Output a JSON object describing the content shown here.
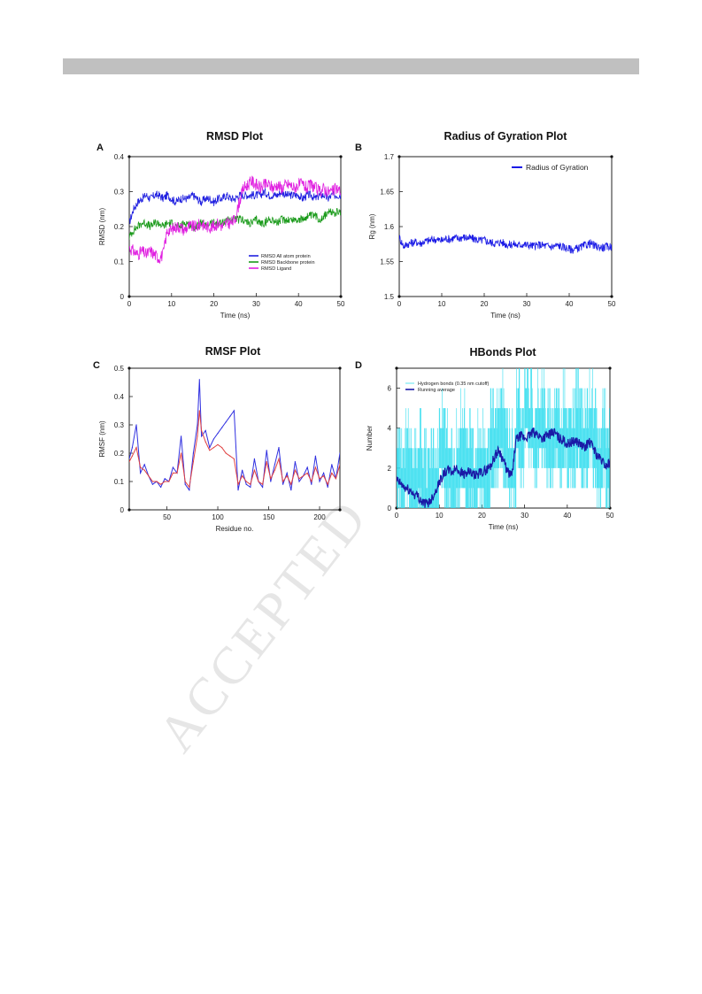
{
  "chart_data": [
    {
      "type": "line",
      "panel_label": "A",
      "title": "RMSD Plot",
      "xlabel": "Time (ns)",
      "ylabel": "RMSD (nm)",
      "xlim": [
        0,
        50
      ],
      "ylim": [
        0,
        0.4
      ],
      "xticks": [
        0,
        10,
        20,
        30,
        40,
        50
      ],
      "yticks": [
        0,
        0.1,
        0.2,
        0.3,
        0.4
      ],
      "grid": false,
      "legend_position": "bottom-right",
      "series": [
        {
          "name": "RMSD All atom protein",
          "color": "#2020e0",
          "x": [
            0,
            1,
            2,
            3,
            4,
            5,
            6,
            7,
            8,
            9,
            10,
            11,
            12,
            13,
            14,
            15,
            16,
            17,
            18,
            19,
            20,
            21,
            22,
            23,
            24,
            25,
            26,
            27,
            28,
            29,
            30,
            31,
            32,
            33,
            34,
            35,
            36,
            37,
            38,
            39,
            40,
            41,
            42,
            43,
            44,
            45,
            46,
            47,
            48,
            49,
            50
          ],
          "y": [
            0.21,
            0.25,
            0.27,
            0.28,
            0.29,
            0.28,
            0.29,
            0.29,
            0.28,
            0.29,
            0.28,
            0.27,
            0.28,
            0.28,
            0.28,
            0.29,
            0.28,
            0.27,
            0.28,
            0.28,
            0.27,
            0.28,
            0.28,
            0.29,
            0.28,
            0.28,
            0.29,
            0.29,
            0.29,
            0.29,
            0.29,
            0.29,
            0.3,
            0.29,
            0.29,
            0.29,
            0.3,
            0.29,
            0.29,
            0.29,
            0.29,
            0.28,
            0.29,
            0.29,
            0.28,
            0.29,
            0.29,
            0.28,
            0.29,
            0.29,
            0.29
          ]
        },
        {
          "name": "RMSD Backbone protein",
          "color": "#1a9a1a",
          "x": [
            0,
            1,
            2,
            3,
            4,
            5,
            6,
            7,
            8,
            9,
            10,
            11,
            12,
            13,
            14,
            15,
            16,
            17,
            18,
            19,
            20,
            21,
            22,
            23,
            24,
            25,
            26,
            27,
            28,
            29,
            30,
            31,
            32,
            33,
            34,
            35,
            36,
            37,
            38,
            39,
            40,
            41,
            42,
            43,
            44,
            45,
            46,
            47,
            48,
            49,
            50
          ],
          "y": [
            0.17,
            0.19,
            0.2,
            0.21,
            0.21,
            0.2,
            0.21,
            0.21,
            0.2,
            0.21,
            0.21,
            0.2,
            0.2,
            0.21,
            0.21,
            0.2,
            0.2,
            0.21,
            0.2,
            0.21,
            0.21,
            0.21,
            0.21,
            0.22,
            0.22,
            0.22,
            0.22,
            0.22,
            0.21,
            0.21,
            0.22,
            0.21,
            0.21,
            0.22,
            0.22,
            0.21,
            0.22,
            0.22,
            0.22,
            0.22,
            0.22,
            0.22,
            0.23,
            0.23,
            0.23,
            0.22,
            0.23,
            0.24,
            0.24,
            0.24,
            0.24
          ]
        },
        {
          "name": "RMSD Ligand",
          "color": "#e020e0",
          "x": [
            0,
            1,
            2,
            3,
            4,
            5,
            6,
            7,
            8,
            9,
            10,
            11,
            12,
            13,
            14,
            15,
            16,
            17,
            18,
            19,
            20,
            21,
            22,
            23,
            24,
            25,
            26,
            27,
            28,
            29,
            30,
            31,
            32,
            33,
            34,
            35,
            36,
            37,
            38,
            39,
            40,
            41,
            42,
            43,
            44,
            45,
            46,
            47,
            48,
            49,
            50
          ],
          "y": [
            0.14,
            0.13,
            0.12,
            0.13,
            0.12,
            0.13,
            0.12,
            0.11,
            0.12,
            0.19,
            0.19,
            0.2,
            0.2,
            0.19,
            0.2,
            0.2,
            0.2,
            0.21,
            0.2,
            0.2,
            0.2,
            0.21,
            0.2,
            0.21,
            0.21,
            0.22,
            0.27,
            0.31,
            0.32,
            0.33,
            0.32,
            0.31,
            0.32,
            0.32,
            0.31,
            0.32,
            0.31,
            0.32,
            0.32,
            0.31,
            0.32,
            0.32,
            0.31,
            0.32,
            0.31,
            0.3,
            0.31,
            0.3,
            0.3,
            0.31,
            0.3
          ]
        }
      ]
    },
    {
      "type": "line",
      "panel_label": "B",
      "title": "Radius of Gyration Plot",
      "xlabel": "Time (ns)",
      "ylabel": "Rg (nm)",
      "xlim": [
        0,
        50
      ],
      "ylim": [
        1.5,
        1.7
      ],
      "xticks": [
        0,
        10,
        20,
        30,
        40,
        50
      ],
      "yticks": [
        1.5,
        1.55,
        1.6,
        1.65,
        1.7
      ],
      "grid": false,
      "legend_position": "top-right",
      "series": [
        {
          "name": "Radius of Gyration",
          "color": "#1a1ae6",
          "x": [
            0,
            1,
            2,
            3,
            4,
            5,
            6,
            7,
            8,
            9,
            10,
            11,
            12,
            13,
            14,
            15,
            16,
            17,
            18,
            19,
            20,
            21,
            22,
            23,
            24,
            25,
            26,
            27,
            28,
            29,
            30,
            31,
            32,
            33,
            34,
            35,
            36,
            37,
            38,
            39,
            40,
            41,
            42,
            43,
            44,
            45,
            46,
            47,
            48,
            49,
            50
          ],
          "y": [
            1.585,
            1.572,
            1.575,
            1.577,
            1.578,
            1.576,
            1.579,
            1.58,
            1.582,
            1.581,
            1.58,
            1.583,
            1.582,
            1.584,
            1.583,
            1.585,
            1.584,
            1.583,
            1.582,
            1.58,
            1.581,
            1.578,
            1.577,
            1.576,
            1.578,
            1.575,
            1.574,
            1.575,
            1.573,
            1.575,
            1.574,
            1.573,
            1.572,
            1.574,
            1.573,
            1.572,
            1.571,
            1.573,
            1.572,
            1.57,
            1.568,
            1.567,
            1.569,
            1.571,
            1.574,
            1.576,
            1.572,
            1.571,
            1.57,
            1.571,
            1.572
          ]
        }
      ]
    },
    {
      "type": "line",
      "panel_label": "C",
      "title": "RMSF Plot",
      "xlabel": "Residue no.",
      "ylabel": "RMSF (nm)",
      "xlim": [
        13,
        220
      ],
      "ylim": [
        0,
        0.5
      ],
      "xticks": [
        50,
        100,
        150,
        200
      ],
      "yticks": [
        0,
        0.1,
        0.2,
        0.3,
        0.4,
        0.5
      ],
      "grid": false,
      "series": [
        {
          "color": "#3030e0",
          "x": [
            13,
            16,
            20,
            24,
            28,
            32,
            36,
            40,
            44,
            48,
            52,
            56,
            60,
            64,
            68,
            72,
            76,
            80,
            82,
            84,
            88,
            92,
            96,
            100,
            104,
            108,
            112,
            116,
            120,
            124,
            128,
            132,
            136,
            140,
            144,
            148,
            152,
            156,
            160,
            164,
            168,
            172,
            176,
            180,
            184,
            188,
            192,
            196,
            200,
            204,
            208,
            212,
            216,
            220
          ],
          "y": [
            0.18,
            0.22,
            0.3,
            0.13,
            0.16,
            0.12,
            0.09,
            0.1,
            0.08,
            0.11,
            0.1,
            0.15,
            0.13,
            0.26,
            0.09,
            0.07,
            0.2,
            0.3,
            0.46,
            0.26,
            0.28,
            0.22,
            0.25,
            0.27,
            0.29,
            0.31,
            0.33,
            0.35,
            0.07,
            0.14,
            0.09,
            0.08,
            0.18,
            0.1,
            0.08,
            0.21,
            0.1,
            0.16,
            0.22,
            0.09,
            0.13,
            0.07,
            0.17,
            0.1,
            0.12,
            0.15,
            0.09,
            0.19,
            0.1,
            0.13,
            0.08,
            0.16,
            0.11,
            0.2
          ]
        },
        {
          "color": "#e04040",
          "x": [
            13,
            16,
            20,
            24,
            28,
            32,
            36,
            40,
            44,
            48,
            52,
            56,
            60,
            64,
            68,
            72,
            76,
            80,
            82,
            84,
            88,
            92,
            96,
            100,
            104,
            108,
            112,
            116,
            120,
            124,
            128,
            132,
            136,
            140,
            144,
            148,
            152,
            156,
            160,
            164,
            168,
            172,
            176,
            180,
            184,
            188,
            192,
            196,
            200,
            204,
            208,
            212,
            216,
            220
          ],
          "y": [
            0.17,
            0.19,
            0.22,
            0.15,
            0.14,
            0.12,
            0.1,
            0.1,
            0.09,
            0.1,
            0.1,
            0.13,
            0.13,
            0.2,
            0.1,
            0.08,
            0.17,
            0.26,
            0.35,
            0.28,
            0.24,
            0.21,
            0.22,
            0.23,
            0.22,
            0.2,
            0.19,
            0.18,
            0.09,
            0.12,
            0.1,
            0.09,
            0.14,
            0.1,
            0.09,
            0.17,
            0.11,
            0.14,
            0.18,
            0.1,
            0.12,
            0.09,
            0.14,
            0.11,
            0.12,
            0.13,
            0.1,
            0.15,
            0.11,
            0.12,
            0.09,
            0.13,
            0.11,
            0.16
          ]
        }
      ]
    },
    {
      "type": "line",
      "panel_label": "D",
      "title": "HBonds Plot",
      "xlabel": "Time (ns)",
      "ylabel": "Number",
      "xlim": [
        0,
        50
      ],
      "ylim": [
        0,
        7
      ],
      "xticks": [
        0,
        10,
        20,
        30,
        40,
        50
      ],
      "yticks": [
        0,
        2,
        4,
        6
      ],
      "grid": false,
      "legend_position": "top-left",
      "series": [
        {
          "name": "Hydrogen bonds (0.35 nm cutoff)",
          "color": "#33ddee",
          "x": [
            0,
            1,
            2,
            3,
            4,
            5,
            6,
            7,
            8,
            9,
            10,
            11,
            12,
            13,
            14,
            15,
            16,
            17,
            18,
            19,
            20,
            21,
            22,
            23,
            24,
            25,
            26,
            27,
            28,
            29,
            30,
            31,
            32,
            33,
            34,
            35,
            36,
            37,
            38,
            39,
            40,
            41,
            42,
            43,
            44,
            45,
            46,
            47,
            48,
            49,
            50
          ],
          "y": [
            2,
            1,
            2,
            1,
            1,
            2,
            1,
            0,
            1,
            1,
            3,
            2,
            2,
            1,
            2,
            3,
            2,
            2,
            1,
            2,
            2,
            1,
            3,
            3,
            4,
            3,
            2,
            2,
            4,
            3,
            5,
            4,
            3,
            4,
            4,
            3,
            3,
            4,
            3,
            4,
            3,
            3,
            4,
            3,
            3,
            4,
            3,
            2,
            3,
            2,
            2
          ]
        },
        {
          "name": "Running average",
          "color": "#1a1aa6",
          "x": [
            0,
            1,
            2,
            3,
            4,
            5,
            6,
            7,
            8,
            9,
            10,
            11,
            12,
            13,
            14,
            15,
            16,
            17,
            18,
            19,
            20,
            21,
            22,
            23,
            24,
            25,
            26,
            27,
            28,
            29,
            30,
            31,
            32,
            33,
            34,
            35,
            36,
            37,
            38,
            39,
            40,
            41,
            42,
            43,
            44,
            45,
            46,
            47,
            48,
            49,
            50
          ],
          "y": [
            1.4,
            1.2,
            1.0,
            0.9,
            0.7,
            0.6,
            0.3,
            0.2,
            0.4,
            0.8,
            1.3,
            1.7,
            1.9,
            1.8,
            2.0,
            1.8,
            1.7,
            1.8,
            1.6,
            1.7,
            1.8,
            1.9,
            2.1,
            2.6,
            2.9,
            2.4,
            1.8,
            1.6,
            3.4,
            3.6,
            3.5,
            3.6,
            3.8,
            3.7,
            3.5,
            3.6,
            3.7,
            3.8,
            3.5,
            3.4,
            3.2,
            3.3,
            3.4,
            3.2,
            3.0,
            3.3,
            3.1,
            2.6,
            2.4,
            2.1,
            2.3
          ]
        }
      ]
    }
  ],
  "watermark": "ACCEPTED"
}
